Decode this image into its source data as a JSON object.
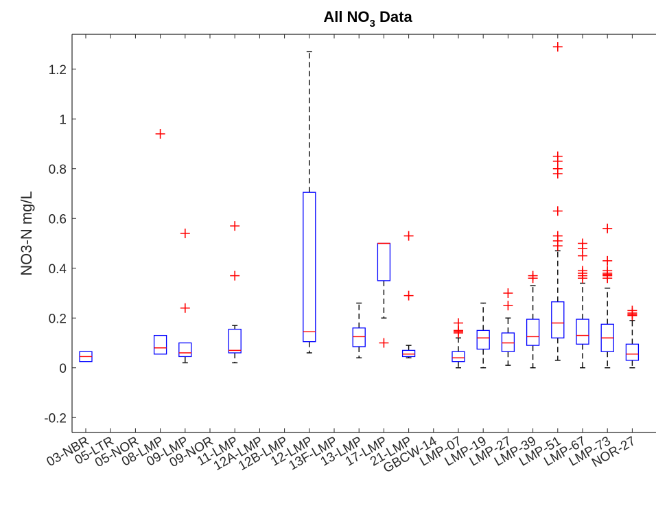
{
  "chart_data": {
    "type": "box",
    "title_main": "All NO",
    "title_sub": "3",
    "title_tail": " Data",
    "ylabel": "NO3-N mg/L",
    "xlabel": "",
    "ylim": [
      -0.26,
      1.34
    ],
    "yticks": [
      "-0.2",
      "0",
      "0.2",
      "0.4",
      "0.6",
      "0.8",
      "1",
      "1.2"
    ],
    "ytick_values": [
      -0.2,
      0,
      0.2,
      0.4,
      0.6,
      0.8,
      1.0,
      1.2
    ],
    "grid": false,
    "colors": {
      "box": "#0000ff",
      "median": "#ff0000",
      "whisker": "#000000",
      "outlier": "#ff0000",
      "axis": "#262626"
    },
    "categories": [
      "03-NBR",
      "05-LTR",
      "05-NOR",
      "08-LMP",
      "09-LMP",
      "09-NOR",
      "11-LMP",
      "12A-LMP",
      "12B-LMP",
      "12-LMP",
      "13F-LMP",
      "13-LMP",
      "17-LMP",
      "21-LMP",
      "GBCW-14",
      "LMP-07",
      "LMP-19",
      "LMP-27",
      "LMP-39",
      "LMP-51",
      "LMP-67",
      "LMP-73",
      "NOR-27"
    ],
    "boxes": [
      {
        "label": "03-NBR",
        "q1": 0.025,
        "median": 0.045,
        "q3": 0.065,
        "wlo": 0.025,
        "whi": 0.065,
        "outliers": []
      },
      {
        "label": "05-LTR",
        "empty": true
      },
      {
        "label": "05-NOR",
        "empty": true
      },
      {
        "label": "08-LMP",
        "q1": 0.055,
        "median": 0.08,
        "q3": 0.13,
        "wlo": 0.055,
        "whi": 0.13,
        "outliers": [
          0.94
        ]
      },
      {
        "label": "09-LMP",
        "q1": 0.045,
        "median": 0.06,
        "q3": 0.1,
        "wlo": 0.02,
        "whi": 0.1,
        "outliers": [
          0.24,
          0.54
        ]
      },
      {
        "label": "09-NOR",
        "empty": true
      },
      {
        "label": "11-LMP",
        "q1": 0.06,
        "median": 0.07,
        "q3": 0.155,
        "wlo": 0.02,
        "whi": 0.17,
        "outliers": [
          0.37,
          0.57
        ]
      },
      {
        "label": "12A-LMP",
        "empty": true
      },
      {
        "label": "12B-LMP",
        "empty": true
      },
      {
        "label": "12-LMP",
        "q1": 0.105,
        "median": 0.145,
        "q3": 0.705,
        "wlo": 0.06,
        "whi": 1.27,
        "outliers": []
      },
      {
        "label": "13F-LMP",
        "empty": true
      },
      {
        "label": "13-LMP",
        "q1": 0.085,
        "median": 0.125,
        "q3": 0.16,
        "wlo": 0.04,
        "whi": 0.26,
        "outliers": []
      },
      {
        "label": "17-LMP",
        "q1": 0.35,
        "median": 0.5,
        "q3": 0.5,
        "wlo": 0.2,
        "whi": 0.5,
        "outliers": [
          0.1
        ]
      },
      {
        "label": "21-LMP",
        "q1": 0.045,
        "median": 0.055,
        "q3": 0.07,
        "wlo": 0.04,
        "whi": 0.09,
        "outliers": [
          0.29,
          0.53
        ]
      },
      {
        "label": "GBCW-14",
        "empty": true
      },
      {
        "label": "LMP-07",
        "q1": 0.025,
        "median": 0.04,
        "q3": 0.065,
        "wlo": 0.0,
        "whi": 0.12,
        "outliers": [
          0.14,
          0.145,
          0.15,
          0.18
        ]
      },
      {
        "label": "LMP-19",
        "q1": 0.075,
        "median": 0.12,
        "q3": 0.15,
        "wlo": 0.0,
        "whi": 0.26,
        "outliers": []
      },
      {
        "label": "LMP-27",
        "q1": 0.065,
        "median": 0.1,
        "q3": 0.14,
        "wlo": 0.01,
        "whi": 0.2,
        "outliers": [
          0.25,
          0.3
        ]
      },
      {
        "label": "LMP-39",
        "q1": 0.09,
        "median": 0.125,
        "q3": 0.195,
        "wlo": 0.0,
        "whi": 0.33,
        "outliers": [
          0.36,
          0.37
        ]
      },
      {
        "label": "LMP-51",
        "q1": 0.12,
        "median": 0.18,
        "q3": 0.265,
        "wlo": 0.03,
        "whi": 0.47,
        "outliers": [
          0.49,
          0.51,
          0.53,
          0.63,
          0.78,
          0.8,
          0.83,
          0.85,
          1.29
        ]
      },
      {
        "label": "LMP-67",
        "q1": 0.095,
        "median": 0.13,
        "q3": 0.195,
        "wlo": 0.0,
        "whi": 0.34,
        "outliers": [
          0.36,
          0.37,
          0.38,
          0.39,
          0.45,
          0.48,
          0.5
        ]
      },
      {
        "label": "LMP-73",
        "q1": 0.065,
        "median": 0.12,
        "q3": 0.175,
        "wlo": 0.0,
        "whi": 0.32,
        "outliers": [
          0.36,
          0.37,
          0.375,
          0.38,
          0.39,
          0.43,
          0.56
        ]
      },
      {
        "label": "NOR-27",
        "q1": 0.03,
        "median": 0.055,
        "q3": 0.095,
        "wlo": 0.0,
        "whi": 0.19,
        "outliers": [
          0.21,
          0.215,
          0.22,
          0.23
        ]
      }
    ]
  }
}
